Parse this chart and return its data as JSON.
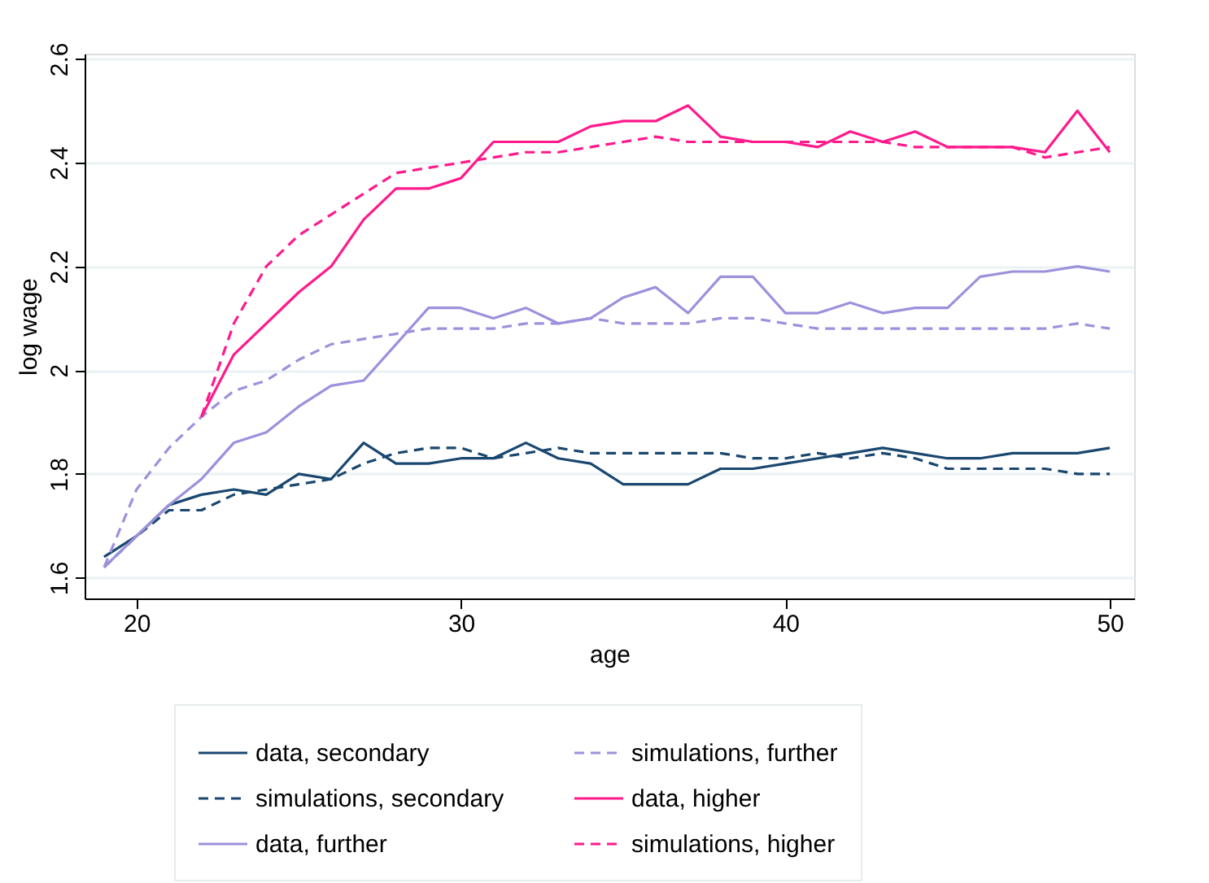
{
  "chart_data": {
    "type": "line",
    "xlabel": "age",
    "ylabel": "log wage",
    "x": [
      19,
      20,
      21,
      22,
      23,
      24,
      25,
      26,
      27,
      28,
      29,
      30,
      31,
      32,
      33,
      34,
      35,
      36,
      37,
      38,
      39,
      40,
      41,
      42,
      43,
      44,
      45,
      46,
      47,
      48,
      49,
      50
    ],
    "series": [
      {
        "name": "data, secondary",
        "color": "#1a476f",
        "line_style": "solid",
        "values": [
          1.64,
          1.68,
          1.74,
          1.76,
          1.77,
          1.76,
          1.8,
          1.79,
          1.86,
          1.82,
          1.82,
          1.83,
          1.83,
          1.86,
          1.83,
          1.82,
          1.78,
          1.78,
          1.78,
          1.81,
          1.81,
          1.82,
          1.83,
          1.84,
          1.85,
          1.84,
          1.83,
          1.83,
          1.84,
          1.84,
          1.84,
          1.85
        ]
      },
      {
        "name": "simulations, secondary",
        "color": "#1a476f",
        "line_style": "dashed",
        "values": [
          1.62,
          1.68,
          1.73,
          1.73,
          1.76,
          1.77,
          1.78,
          1.79,
          1.82,
          1.84,
          1.85,
          1.85,
          1.83,
          1.84,
          1.85,
          1.84,
          1.84,
          1.84,
          1.84,
          1.84,
          1.83,
          1.83,
          1.84,
          1.83,
          1.84,
          1.83,
          1.81,
          1.81,
          1.81,
          1.81,
          1.8,
          1.8
        ]
      },
      {
        "name": "data, further",
        "color": "#9c91dc",
        "line_style": "solid",
        "values": [
          1.62,
          1.68,
          1.74,
          1.79,
          1.86,
          1.88,
          1.93,
          1.97,
          1.98,
          2.05,
          2.12,
          2.12,
          2.1,
          2.12,
          2.09,
          2.1,
          2.14,
          2.16,
          2.11,
          2.18,
          2.18,
          2.11,
          2.11,
          2.13,
          2.11,
          2.12,
          2.12,
          2.18,
          2.19,
          2.19,
          2.2,
          2.19
        ]
      },
      {
        "name": "simulations, further",
        "color": "#9c91dc",
        "line_style": "dashed",
        "values": [
          1.62,
          1.77,
          1.85,
          1.91,
          1.96,
          1.98,
          2.02,
          2.05,
          2.06,
          2.07,
          2.08,
          2.08,
          2.08,
          2.09,
          2.09,
          2.1,
          2.09,
          2.09,
          2.09,
          2.1,
          2.1,
          2.09,
          2.08,
          2.08,
          2.08,
          2.08,
          2.08,
          2.08,
          2.08,
          2.08,
          2.09,
          2.08
        ]
      },
      {
        "name": "data, higher",
        "color": "#ff1a8c",
        "line_style": "solid",
        "values": [
          null,
          null,
          null,
          1.91,
          2.03,
          2.09,
          2.15,
          2.2,
          2.29,
          2.35,
          2.35,
          2.37,
          2.44,
          2.44,
          2.44,
          2.47,
          2.48,
          2.48,
          2.51,
          2.45,
          2.44,
          2.44,
          2.43,
          2.46,
          2.44,
          2.46,
          2.43,
          2.43,
          2.43,
          2.42,
          2.5,
          2.42
        ]
      },
      {
        "name": "simulations, higher",
        "color": "#ff1a8c",
        "line_style": "dashed",
        "values": [
          null,
          null,
          null,
          1.91,
          2.09,
          2.2,
          2.26,
          2.3,
          2.34,
          2.38,
          2.39,
          2.4,
          2.41,
          2.42,
          2.42,
          2.43,
          2.44,
          2.45,
          2.44,
          2.44,
          2.44,
          2.44,
          2.44,
          2.44,
          2.44,
          2.43,
          2.43,
          2.43,
          2.43,
          2.41,
          2.42,
          2.43
        ]
      }
    ],
    "xlim": [
      18.4,
      50.75
    ],
    "ylim": [
      1.56,
      2.61
    ],
    "xticks": [
      20,
      30,
      40,
      50
    ],
    "yticks": [
      {
        "value": 1.6,
        "label": "1.6"
      },
      {
        "value": 1.8,
        "label": "1.8"
      },
      {
        "value": 2,
        "label": "2"
      },
      {
        "value": 2.2,
        "label": "2.2"
      },
      {
        "value": 2.4,
        "label": "2.4"
      },
      {
        "value": 2.6,
        "label": "2.6"
      }
    ],
    "grid": "y",
    "legend": "bottom",
    "marker": "none"
  }
}
